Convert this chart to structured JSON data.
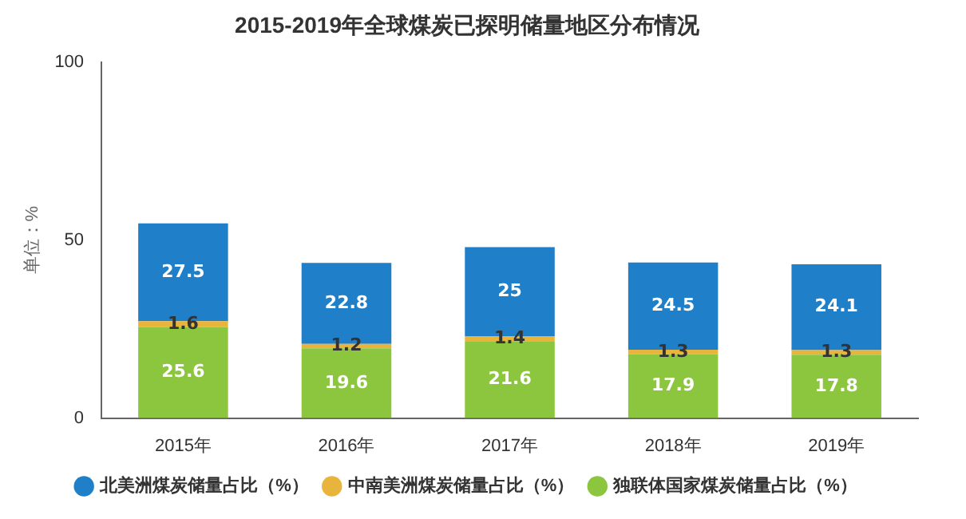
{
  "chart_data": {
    "type": "bar",
    "title": "2015-2019年全球煤炭已探明储量地区分布情况",
    "ylabel": "单位：%",
    "categories": [
      "2015年",
      "2016年",
      "2017年",
      "2018年",
      "2019年"
    ],
    "stacked": true,
    "series": [
      {
        "name": "独联体国家煤炭储量占比（%）",
        "color": "#8cc63e",
        "values": [
          25.6,
          19.6,
          21.6,
          17.9,
          17.8
        ]
      },
      {
        "name": "中南美洲煤炭储量占比（%）",
        "color": "#e9b43b",
        "values": [
          1.6,
          1.2,
          1.4,
          1.3,
          1.3
        ]
      },
      {
        "name": "北美洲煤炭储量占比（%）",
        "color": "#1f7fc9",
        "values": [
          27.5,
          22.8,
          25,
          24.5,
          24.1
        ]
      }
    ],
    "ylim": [
      0,
      100
    ],
    "yticks": [
      0,
      50,
      100
    ],
    "grid": false,
    "legend": "bottom",
    "data_labels": true
  }
}
